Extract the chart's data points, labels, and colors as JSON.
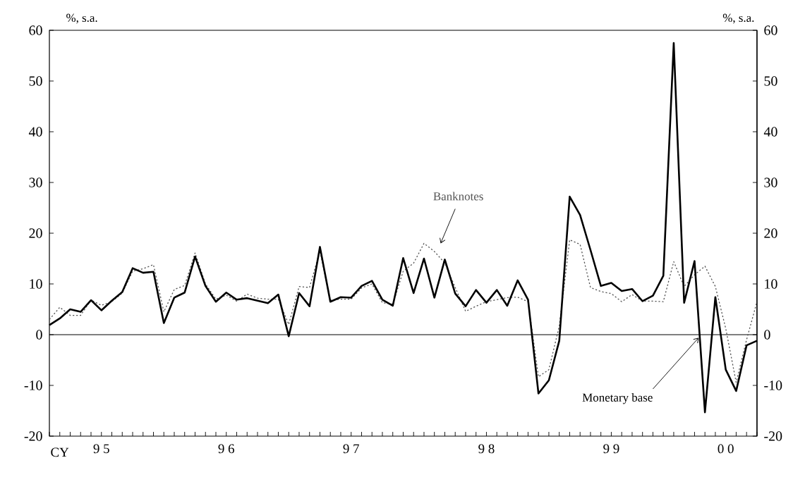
{
  "chart_data": {
    "type": "line",
    "categories": [
      null,
      null,
      null,
      null,
      null,
      "9 5",
      null,
      null,
      null,
      null,
      null,
      null,
      null,
      null,
      null,
      null,
      null,
      "9 6",
      null,
      null,
      null,
      null,
      null,
      null,
      null,
      null,
      null,
      null,
      null,
      "9 7",
      null,
      null,
      null,
      null,
      null,
      null,
      null,
      null,
      null,
      null,
      null,
      null,
      "9 8",
      null,
      null,
      null,
      null,
      null,
      null,
      null,
      null,
      null,
      null,
      null,
      "9 9",
      null,
      null,
      null,
      null,
      null,
      null,
      null,
      null,
      null,
      null,
      "0 0",
      null,
      null,
      null
    ],
    "xlabel": "CY",
    "ylabel": "%, s.a.",
    "y2label": "%, s.a.",
    "ylim": [
      -20,
      60
    ],
    "yticks": [
      -20,
      -10,
      0,
      10,
      20,
      30,
      40,
      50,
      60
    ],
    "y2lim": [
      -20,
      60
    ],
    "y2ticks": [
      -20,
      -10,
      0,
      10,
      20,
      30,
      40,
      50,
      60
    ],
    "grid": false,
    "marker": "none",
    "ref_lines": [
      {
        "axis": "y",
        "value": 0,
        "color": "#000000"
      }
    ],
    "series": [
      {
        "name": "Monetary base",
        "color": "#000000",
        "line_style": "solid",
        "values": [
          1.9,
          3.2,
          5.0,
          4.5,
          6.8,
          4.8,
          6.7,
          8.4,
          13.1,
          12.2,
          12.4,
          2.3,
          7.3,
          8.3,
          15.4,
          9.6,
          6.5,
          8.3,
          6.9,
          7.2,
          6.7,
          6.2,
          7.9,
          -0.3,
          8.2,
          5.6,
          17.3,
          6.5,
          7.4,
          7.3,
          9.6,
          10.6,
          6.9,
          5.7,
          15.1,
          8.2,
          15.0,
          7.3,
          14.8,
          8.1,
          5.6,
          8.8,
          6.3,
          8.8,
          5.7,
          10.7,
          6.9,
          -11.6,
          -9.0,
          -1.2,
          27.2,
          23.6,
          16.7,
          9.6,
          10.2,
          8.6,
          9.0,
          6.6,
          7.7,
          11.6,
          57.5,
          6.3,
          14.5,
          -15.3,
          7.4,
          -6.9,
          -11.1,
          -2.1,
          -1.2
        ]
      },
      {
        "name": "Banknotes",
        "color": "#555555",
        "line_style": "dotted",
        "values": [
          3.0,
          5.4,
          3.8,
          3.8,
          6.8,
          5.8,
          6.5,
          8.2,
          12.5,
          13.0,
          13.8,
          4.5,
          8.9,
          9.7,
          16.1,
          10.0,
          7.0,
          7.8,
          6.6,
          8.0,
          7.2,
          7.0,
          7.0,
          2.0,
          9.5,
          9.3,
          16.5,
          6.8,
          7.0,
          7.0,
          9.2,
          10.0,
          6.3,
          6.0,
          12.5,
          14.1,
          18.0,
          16.4,
          14.1,
          9.3,
          4.6,
          5.6,
          6.5,
          6.9,
          7.3,
          7.4,
          6.5,
          -8.3,
          -6.9,
          1.7,
          18.7,
          17.8,
          9.3,
          8.5,
          8.1,
          6.5,
          7.9,
          6.6,
          6.6,
          6.5,
          14.4,
          9.5,
          11.8,
          13.5,
          9.5,
          1.2,
          -9.4,
          -1.0,
          6.5
        ]
      }
    ]
  }
}
